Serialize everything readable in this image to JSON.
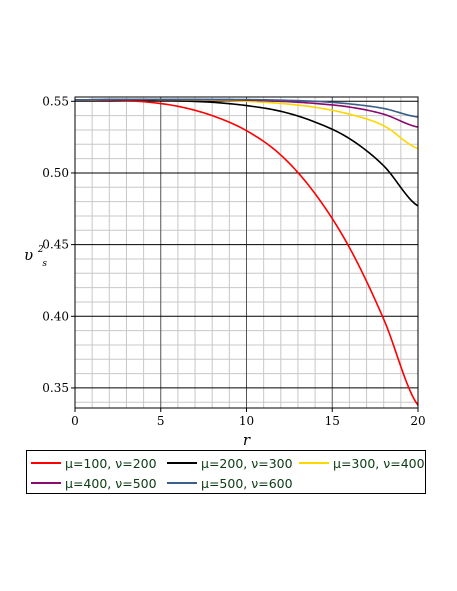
{
  "chart_data": {
    "type": "line",
    "title": "",
    "xlabel": "r",
    "ylabel": "υ",
    "ylabel_sub": "s",
    "ylabel_sup": "2",
    "xlim": [
      0,
      20
    ],
    "ylim": [
      0.336,
      0.553
    ],
    "xticks": [
      0,
      5,
      10,
      15,
      20
    ],
    "xtick_labels": [
      "0",
      "5",
      "10",
      "15",
      "20"
    ],
    "yticks": [
      0.35,
      0.4,
      0.45,
      0.5,
      0.55
    ],
    "ytick_labels": [
      "0.35",
      "0.40",
      "0.45",
      "0.50",
      "0.55"
    ],
    "grid": true,
    "legend_position": "bottom",
    "x": [
      0,
      2,
      4,
      6,
      8,
      10,
      12,
      14,
      16,
      18,
      20
    ],
    "series": [
      {
        "name": "μ=100, ν=200",
        "color": "#ff0000",
        "values": [
          0.551,
          0.5508,
          0.5497,
          0.5465,
          0.54,
          0.5295,
          0.5125,
          0.4855,
          0.448,
          0.398,
          0.338
        ]
      },
      {
        "name": "μ=200, ν=300",
        "color": "#000000",
        "values": [
          0.551,
          0.551,
          0.5508,
          0.5503,
          0.5493,
          0.547,
          0.543,
          0.5355,
          0.524,
          0.505,
          0.477
        ]
      },
      {
        "name": "μ=300, ν=400",
        "color": "#ffd700",
        "values": [
          0.551,
          0.5511,
          0.5511,
          0.551,
          0.5508,
          0.55,
          0.5485,
          0.5458,
          0.541,
          0.533,
          0.517
        ]
      },
      {
        "name": "μ=400, ν=500",
        "color": "#8b0a6e",
        "values": [
          0.551,
          0.5512,
          0.5512,
          0.5512,
          0.5511,
          0.5508,
          0.55,
          0.5485,
          0.546,
          0.541,
          0.532
        ]
      },
      {
        "name": "μ=500, ν=600",
        "color": "#3a5f8a",
        "values": [
          0.551,
          0.5513,
          0.5513,
          0.5513,
          0.5513,
          0.5512,
          0.5508,
          0.55,
          0.5482,
          0.545,
          0.539
        ]
      }
    ]
  }
}
